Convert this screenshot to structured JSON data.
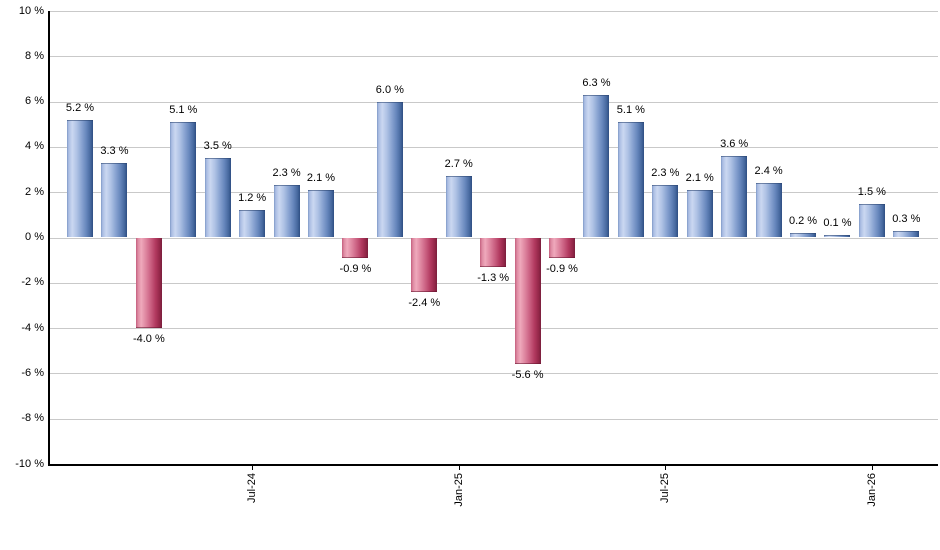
{
  "chart_data": {
    "type": "bar",
    "title": "",
    "xlabel": "",
    "ylabel": "",
    "ylim": [
      -10,
      10
    ],
    "y_step": 2,
    "grid": true,
    "legend": "none",
    "values": [
      5.2,
      3.3,
      -4.0,
      5.1,
      3.5,
      1.2,
      2.3,
      2.1,
      -0.9,
      6.0,
      -2.4,
      2.7,
      -1.3,
      -5.6,
      -0.9,
      6.3,
      5.1,
      2.3,
      2.1,
      3.6,
      2.4,
      0.2,
      0.1,
      1.5,
      0.3
    ],
    "bar_labels": [
      "5.2 %",
      "3.3 %",
      "-4.0 %",
      "5.1 %",
      "3.5 %",
      "1.2 %",
      "2.3 %",
      "2.1 %",
      "-0.9 %",
      "6.0 %",
      "-2.4 %",
      "2.7 %",
      "-1.3 %",
      "-5.6 %",
      "-0.9 %",
      "6.3 %",
      "5.1 %",
      "2.3 %",
      "2.1 %",
      "3.6 %",
      "2.4 %",
      "0.2 %",
      "0.1 %",
      "1.5 %",
      "0.3 %"
    ],
    "x_ticks": [
      {
        "label": "Jul-24",
        "bar_index": 5
      },
      {
        "label": "Jan-25",
        "bar_index": 11
      },
      {
        "label": "Jul-25",
        "bar_index": 17
      },
      {
        "label": "Jan-26",
        "bar_index": 23
      }
    ],
    "y_ticks": [
      {
        "label": "10 %",
        "value": 10
      },
      {
        "label": "8 %",
        "value": 8
      },
      {
        "label": "6 %",
        "value": 6
      },
      {
        "label": "4 %",
        "value": 4
      },
      {
        "label": "2 %",
        "value": 2
      },
      {
        "label": "0 %",
        "value": 0
      },
      {
        "label": "-2 %",
        "value": -2
      },
      {
        "label": "-4 %",
        "value": -4
      },
      {
        "label": "-6 %",
        "value": -6
      },
      {
        "label": "-8 %",
        "value": -8
      },
      {
        "label": "-10 %",
        "value": -10
      }
    ],
    "colors": {
      "positive_bar_base": "#6585BB",
      "negative_bar_base": "#C24566",
      "positive_gradient_stops": [
        "#7E98C6 0%",
        "#A9BCE2 6%",
        "#CBD8F1 20%",
        "#AFC2E5 38%",
        "#8CA6D3 55%",
        "#6585BB 75%",
        "#47699F 90%",
        "#2E4E82 100%"
      ],
      "negative_gradient_stops": [
        "#C45E7E 0%",
        "#DE8BA2 8%",
        "#EFA9BC 20%",
        "#DE86A0 38%",
        "#CC6384 55%",
        "#B23A60 75%",
        "#96284A 90%",
        "#7A1E3C 100%"
      ],
      "gridline": "#c9c9c9",
      "axis": "#000000",
      "label_text": "#000000"
    }
  }
}
